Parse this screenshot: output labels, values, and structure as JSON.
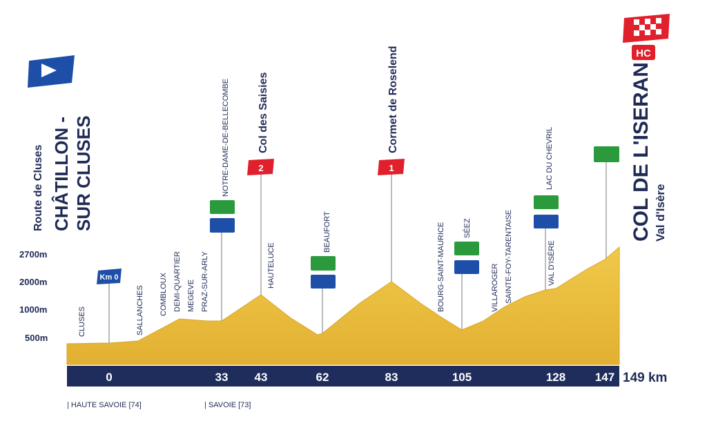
{
  "elevation_axis": {
    "ticks": [
      "2700m",
      "2000m",
      "1000m",
      "500m"
    ]
  },
  "start": {
    "road": "Route de Cluses",
    "name_line1": "CHÂTILLON -",
    "name_line2": "SUR CLUSES"
  },
  "start_sign": "Km 0",
  "finish": {
    "category": "HC",
    "name": "COL DE L'ISERAN",
    "place": "Val d'Isère"
  },
  "climbs": [
    {
      "name": "Col des Saisies",
      "category": "2"
    },
    {
      "name": "Cormet de Roselend",
      "category": "1"
    }
  ],
  "places": [
    "CLUSES",
    "SALLANCHES",
    "COMBLOUX",
    "DEMI-QUARTIER",
    "MEGEVE",
    "PRAZ-SUR-ARLY",
    "NOTRE-DAME-DE-BELLECOMBE",
    "HAUTELUCE",
    "BEAUFORT",
    "BOURG-SAINT-MAURICE",
    "SÉEZ",
    "VILLAROGER",
    "SAINTE-FOY-TARENTAISE",
    "LAC DU CHEVRIL",
    "VAL D'ISÈRE"
  ],
  "km_markers": [
    "0",
    "33",
    "43",
    "62",
    "83",
    "105",
    "128",
    "147"
  ],
  "total_distance": "149 km",
  "regions": [
    "| HAUTE SAVOIE [74]",
    "| SAVOIE [73]"
  ]
}
